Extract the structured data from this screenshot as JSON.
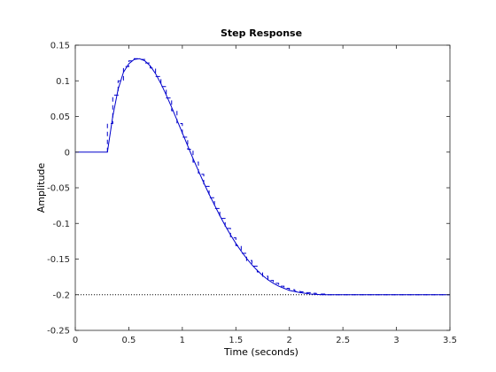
{
  "chart_data": {
    "type": "line",
    "title": "Step Response",
    "xlabel": "Time (seconds)",
    "ylabel": "Amplitude",
    "xlim": [
      0,
      3.5
    ],
    "ylim": [
      -0.25,
      0.15
    ],
    "x_ticks": [
      0,
      0.5,
      1,
      1.5,
      2,
      2.5,
      3,
      3.5
    ],
    "x_tick_labels": [
      "0",
      "0.5",
      "1",
      "1.5",
      "2",
      "2.5",
      "3",
      "3.5"
    ],
    "y_ticks": [
      0.15,
      0.1,
      0.05,
      0,
      -0.05,
      -0.1,
      -0.15,
      -0.2,
      -0.25
    ],
    "y_tick_labels": [
      "0.15",
      "0.1",
      "0.05",
      "0",
      "-0.05",
      "-0.1",
      "-0.15",
      "-0.2",
      "-0.25"
    ],
    "grid": false,
    "reference_line": {
      "y": -0.2,
      "style": "dotted",
      "color": "#000000"
    },
    "series": [
      {
        "style": "solid",
        "color": "#0000cc",
        "x": [
          0,
          0.3,
          0.35,
          0.4,
          0.45,
          0.5,
          0.55,
          0.6,
          0.65,
          0.7,
          0.75,
          0.8,
          0.85,
          0.9,
          0.95,
          1.0,
          1.05,
          1.1,
          1.15,
          1.2,
          1.25,
          1.3,
          1.35,
          1.4,
          1.45,
          1.5,
          1.55,
          1.6,
          1.65,
          1.7,
          1.75,
          1.8,
          1.85,
          1.9,
          1.95,
          2.0,
          2.1,
          2.2,
          2.3,
          2.4,
          2.5,
          2.6,
          2.7,
          2.8,
          2.9,
          3.0,
          3.1,
          3.2,
          3.3,
          3.4,
          3.5
        ],
        "y": [
          0,
          0,
          0.05,
          0.088,
          0.112,
          0.124,
          0.13,
          0.131,
          0.128,
          0.121,
          0.11,
          0.096,
          0.08,
          0.063,
          0.045,
          0.027,
          0.009,
          -0.009,
          -0.026,
          -0.043,
          -0.059,
          -0.074,
          -0.089,
          -0.103,
          -0.116,
          -0.128,
          -0.139,
          -0.149,
          -0.158,
          -0.166,
          -0.173,
          -0.179,
          -0.184,
          -0.188,
          -0.191,
          -0.194,
          -0.197,
          -0.199,
          -0.2,
          -0.2,
          -0.2,
          -0.2,
          -0.2,
          -0.2,
          -0.2,
          -0.2,
          -0.2,
          -0.2,
          -0.2,
          -0.2,
          -0.2
        ]
      },
      {
        "style": "dashed-stairs",
        "color": "#0000cc",
        "sample_time": 0.05,
        "x": [
          0.3,
          0.35,
          0.4,
          0.45,
          0.5,
          0.55,
          0.6,
          0.65,
          0.7,
          0.75,
          0.8,
          0.85,
          0.9,
          0.95,
          1.0,
          1.05,
          1.1,
          1.15,
          1.2,
          1.25,
          1.3,
          1.35,
          1.4,
          1.45,
          1.5,
          1.55,
          1.6,
          1.65,
          1.7,
          1.75,
          1.8,
          1.85,
          1.9,
          1.95,
          2.0,
          2.05,
          2.1,
          2.15,
          2.2,
          2.25,
          2.3,
          2.35,
          2.4,
          2.45,
          2.5,
          2.55,
          2.6,
          2.65,
          2.7,
          2.75,
          2.8,
          2.85,
          2.9,
          2.95,
          3.0,
          3.05,
          3.1,
          3.15,
          3.2,
          3.25,
          3.3,
          3.35,
          3.4,
          3.45
        ],
        "y": [
          0.04,
          0.08,
          0.1,
          0.12,
          0.128,
          0.131,
          0.13,
          0.125,
          0.118,
          0.106,
          0.092,
          0.076,
          0.058,
          0.04,
          0.021,
          0.004,
          -0.014,
          -0.031,
          -0.048,
          -0.064,
          -0.079,
          -0.093,
          -0.107,
          -0.12,
          -0.131,
          -0.142,
          -0.152,
          -0.16,
          -0.168,
          -0.174,
          -0.18,
          -0.184,
          -0.188,
          -0.191,
          -0.193,
          -0.195,
          -0.196,
          -0.197,
          -0.198,
          -0.199,
          -0.199,
          -0.2,
          -0.2,
          -0.2,
          -0.2,
          -0.2,
          -0.2,
          -0.2,
          -0.2,
          -0.2,
          -0.2,
          -0.2,
          -0.2,
          -0.2,
          -0.2,
          -0.2,
          -0.2,
          -0.2,
          -0.2,
          -0.2,
          -0.2,
          -0.2,
          -0.2,
          -0.2
        ]
      }
    ]
  }
}
